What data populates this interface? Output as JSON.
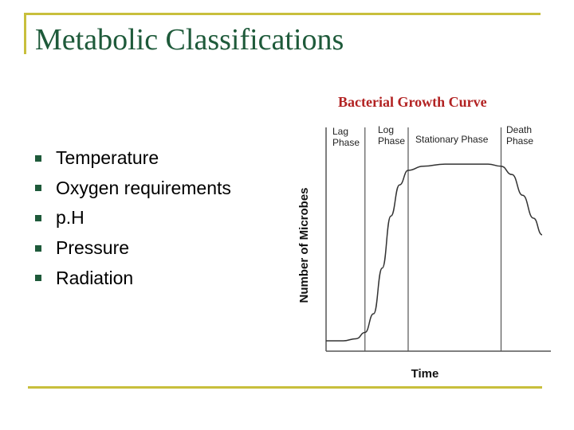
{
  "slide": {
    "title": "Metabolic Classifications",
    "accent_color": "#c8bf3c",
    "title_color": "#1e5a3a",
    "bullets": [
      "Temperature",
      "Oxygen requirements",
      "p.H",
      "Pressure",
      "Radiation"
    ]
  },
  "chart_data": {
    "type": "line",
    "title": "Bacterial Growth Curve",
    "xlabel": "Time",
    "ylabel": "Number of Microbes",
    "phases": [
      {
        "line1": "Lag",
        "line2": "Phase"
      },
      {
        "line1": "Log",
        "line2": "Phase"
      },
      {
        "line1": "Stationary Phase",
        "line2": ""
      },
      {
        "line1": "Death",
        "line2": "Phase"
      }
    ],
    "phase_boundaries": [
      0.18,
      0.38,
      0.81
    ],
    "curve": [
      [
        0.0,
        0.05
      ],
      [
        0.08,
        0.05
      ],
      [
        0.14,
        0.06
      ],
      [
        0.18,
        0.09
      ],
      [
        0.22,
        0.18
      ],
      [
        0.26,
        0.4
      ],
      [
        0.3,
        0.65
      ],
      [
        0.34,
        0.8
      ],
      [
        0.38,
        0.87
      ],
      [
        0.45,
        0.89
      ],
      [
        0.55,
        0.9
      ],
      [
        0.65,
        0.9
      ],
      [
        0.75,
        0.9
      ],
      [
        0.81,
        0.89
      ],
      [
        0.86,
        0.85
      ],
      [
        0.91,
        0.75
      ],
      [
        0.96,
        0.64
      ],
      [
        1.0,
        0.56
      ]
    ],
    "line_color": "#333333"
  }
}
